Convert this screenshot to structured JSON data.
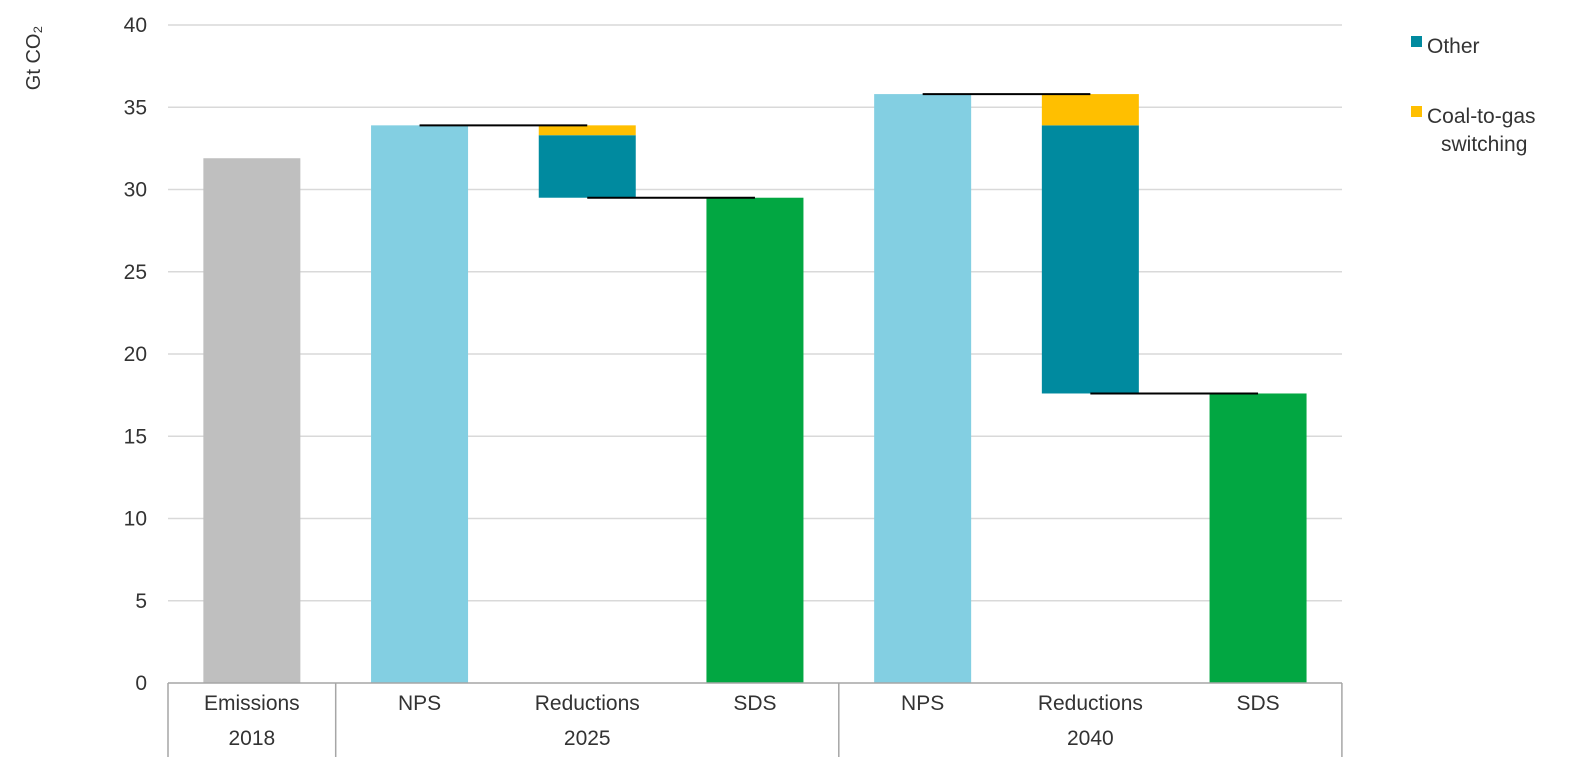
{
  "chart_data": {
    "type": "bar",
    "subtype": "waterfall",
    "ylabel": "Gt CO₂",
    "ylim": [
      0,
      40
    ],
    "yticks": [
      0,
      5,
      10,
      15,
      20,
      25,
      30,
      35,
      40
    ],
    "grid": true,
    "legend_position": "top-right",
    "colors": {
      "emissions": "#bfbfbf",
      "nps": "#83cfe2",
      "sds": "#02a742",
      "other": "#008a9f",
      "coal_to_gas": "#ffbf00",
      "grid": "#d9d9d9",
      "connector": "#000000",
      "axis": "#a6a6a6"
    },
    "legend": [
      {
        "key": "other",
        "lines": [
          "Other"
        ]
      },
      {
        "key": "coal_to_gas",
        "lines": [
          "Coal-to-gas",
          "switching"
        ]
      }
    ],
    "groups": [
      {
        "label": "2018",
        "categories": [
          "Emissions"
        ]
      },
      {
        "label": "2025",
        "categories": [
          "NPS",
          "Reductions",
          "SDS"
        ]
      },
      {
        "label": "2040",
        "categories": [
          "NPS",
          "Reductions",
          "SDS"
        ]
      }
    ],
    "bars": [
      {
        "category": "Emissions",
        "group": "2018",
        "kind": "total",
        "color_key": "emissions",
        "value": 31.9
      },
      {
        "category": "NPS",
        "group": "2025",
        "kind": "total",
        "color_key": "nps",
        "value": 33.9
      },
      {
        "category": "Reductions",
        "group": "2025",
        "kind": "reduction",
        "segments": [
          {
            "name": "Other",
            "color_key": "other",
            "from": 29.5,
            "to": 33.3
          },
          {
            "name": "Coal-to-gas switching",
            "color_key": "coal_to_gas",
            "from": 33.3,
            "to": 33.9
          }
        ]
      },
      {
        "category": "SDS",
        "group": "2025",
        "kind": "total",
        "color_key": "sds",
        "value": 29.5
      },
      {
        "category": "NPS",
        "group": "2040",
        "kind": "total",
        "color_key": "nps",
        "value": 35.8
      },
      {
        "category": "Reductions",
        "group": "2040",
        "kind": "reduction",
        "segments": [
          {
            "name": "Other",
            "color_key": "other",
            "from": 17.6,
            "to": 33.9
          },
          {
            "name": "Coal-to-gas switching",
            "color_key": "coal_to_gas",
            "from": 33.9,
            "to": 35.8
          }
        ]
      },
      {
        "category": "SDS",
        "group": "2040",
        "kind": "total",
        "color_key": "sds",
        "value": 17.6
      }
    ],
    "connectors": [
      {
        "from_bar": 1,
        "to_bar": 2,
        "value": 33.9
      },
      {
        "from_bar": 2,
        "to_bar": 3,
        "value": 29.5
      },
      {
        "from_bar": 4,
        "to_bar": 5,
        "value": 35.8
      },
      {
        "from_bar": 5,
        "to_bar": 6,
        "value": 17.6
      }
    ]
  }
}
